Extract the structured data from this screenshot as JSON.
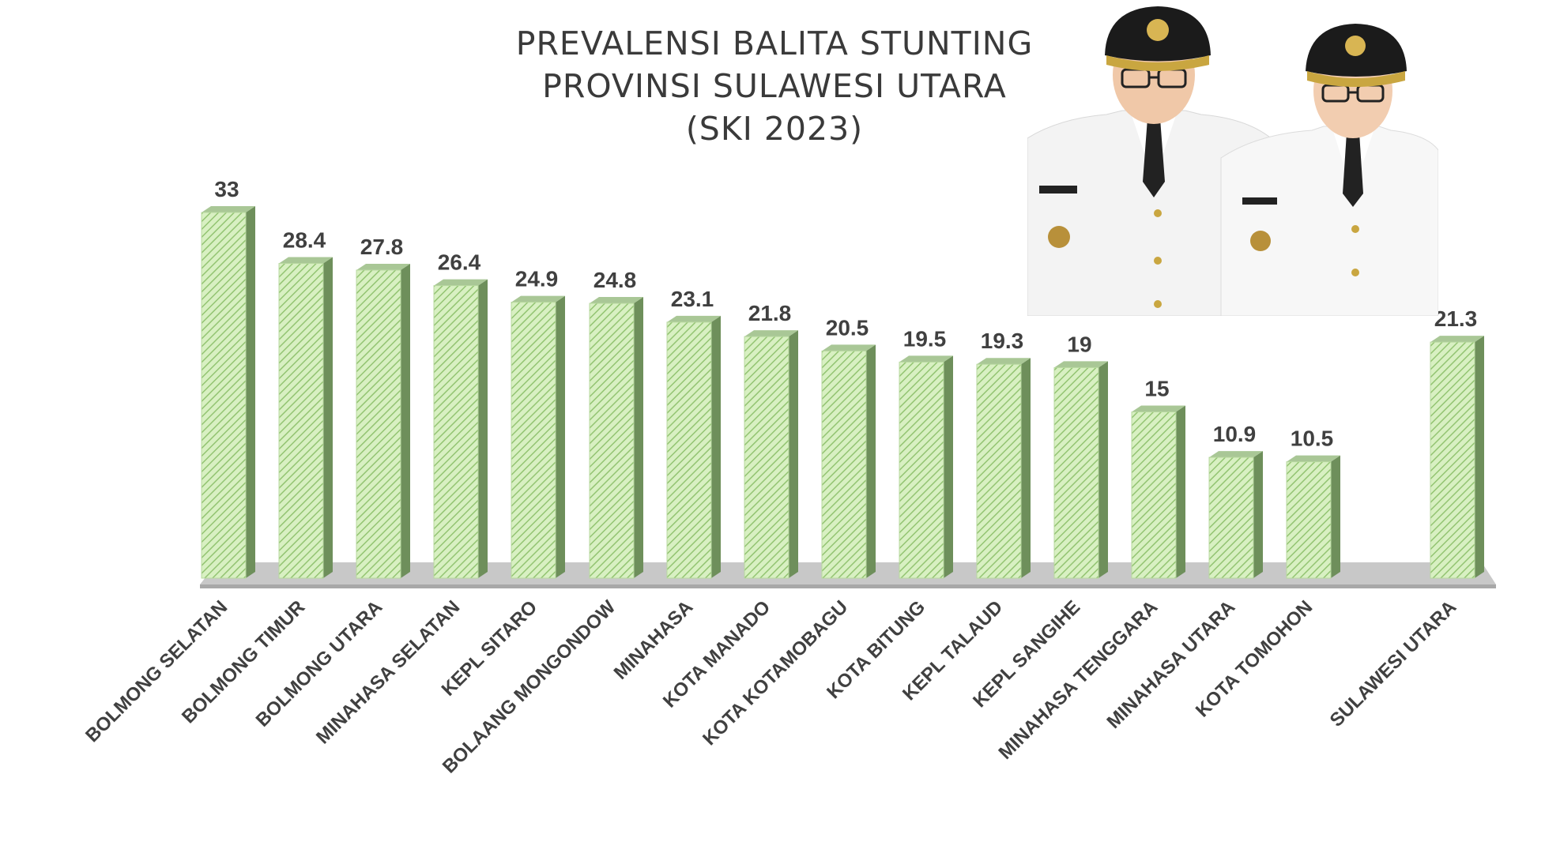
{
  "chart_data": {
    "type": "bar",
    "title": [
      "PREVALENSI BALITA STUNTING",
      "PROVINSI SULAWESI UTARA",
      "(SKI 2023)"
    ],
    "categories": [
      "BOLMONG SELATAN",
      "BOLMONG TIMUR",
      "BOLMONG UTARA",
      "MINAHASA SELATAN",
      "KEPL SITARO",
      "BOLAANG MONGONDOW",
      "MINAHASA",
      "KOTA MANADO",
      "KOTA KOTAMOBAGU",
      "KOTA BITUNG",
      "KEPL TALAUD",
      "KEPL SANGIHE",
      "MINAHASA TENGGARA",
      "MINAHASA UTARA",
      "KOTA TOMOHON",
      "SULAWESI UTARA"
    ],
    "values": [
      33,
      28.4,
      27.8,
      26.4,
      24.9,
      24.8,
      23.1,
      21.8,
      20.5,
      19.5,
      19.3,
      19,
      15,
      10.9,
      10.5,
      21.3
    ],
    "value_labels": [
      "33",
      "28.4",
      "27.8",
      "26.4",
      "24.9",
      "24.8",
      "23.1",
      "21.8",
      "20.5",
      "19.5",
      "19.3",
      "19",
      "15",
      "10.9",
      "10.5",
      "21.3"
    ],
    "xlabel": "",
    "ylabel": "",
    "ylim": [
      0,
      33
    ],
    "grid": false,
    "legend": "none",
    "bar_style": "3d, diagonal hatch",
    "colors": {
      "bar_face": "#d8f0c2",
      "bar_hatch": "#93c472",
      "bar_side": "#6e8f5b",
      "bar_top": "#a9c796",
      "floor": "#c4c4c4",
      "floor_front": "#b0b0b0",
      "text": "#404040"
    }
  },
  "photo": {
    "description_icon": "officials-portrait-photo"
  }
}
